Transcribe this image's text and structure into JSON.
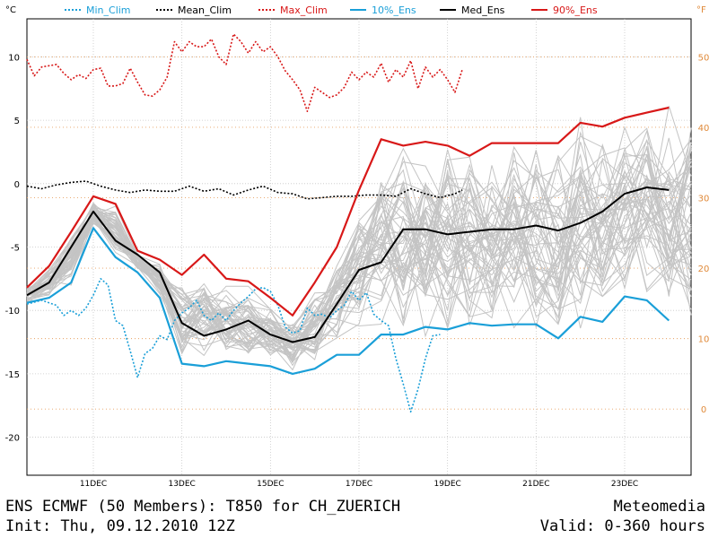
{
  "footer": {
    "title": "ENS ECMWF (50 Members): T850 for CH_ZUERICH",
    "init": "Init: Thu, 09.12.2010 12Z",
    "brand": "Meteomedia",
    "valid": "Valid: 0-360 hours"
  },
  "chart_data": {
    "type": "line",
    "left_unit": "°C",
    "right_unit": "°F",
    "ylim": [
      -23,
      13
    ],
    "xlim": [
      0,
      360
    ],
    "y_ticks": [
      -20,
      -15,
      -10,
      -5,
      0,
      5,
      10
    ],
    "y2_ticks": [
      0,
      10,
      20,
      30,
      40,
      50
    ],
    "x_ticks": [
      {
        "label": "11DEC",
        "h": 36
      },
      {
        "label": "13DEC",
        "h": 84
      },
      {
        "label": "15DEC",
        "h": 132
      },
      {
        "label": "17DEC",
        "h": 180
      },
      {
        "label": "19DEC",
        "h": 228
      },
      {
        "label": "21DEC",
        "h": 276
      },
      {
        "label": "23DEC",
        "h": 324
      }
    ],
    "legend": [
      {
        "key": "min_clim",
        "label": "Min_Clim",
        "color": "#1a9fd8",
        "dash": true
      },
      {
        "key": "mean_clim",
        "label": "Mean_Clim",
        "color": "#000000",
        "dash": true
      },
      {
        "key": "max_clim",
        "label": "Max_Clim",
        "color": "#d81818",
        "dash": true
      },
      {
        "key": "p10",
        "label": "10%_Ens",
        "color": "#1a9fd8",
        "dash": false
      },
      {
        "key": "med",
        "label": "Med_Ens",
        "color": "#000000",
        "dash": false
      },
      {
        "key": "p90",
        "label": "90%_Ens",
        "color": "#d81818",
        "dash": false
      }
    ],
    "series": [
      {
        "key": "max_clim",
        "values": [
          [
            0,
            9.8
          ],
          [
            4,
            8.5
          ],
          [
            8,
            9.2
          ],
          [
            12,
            9.3
          ],
          [
            16,
            9.4
          ],
          [
            20,
            8.7
          ],
          [
            24,
            8.2
          ],
          [
            28,
            8.6
          ],
          [
            32,
            8.3
          ],
          [
            36,
            9.0
          ],
          [
            40,
            9.1
          ],
          [
            44,
            7.7
          ],
          [
            48,
            7.7
          ],
          [
            52,
            7.9
          ],
          [
            56,
            9.1
          ],
          [
            60,
            8.0
          ],
          [
            64,
            7.0
          ],
          [
            68,
            6.9
          ],
          [
            72,
            7.4
          ],
          [
            76,
            8.4
          ],
          [
            80,
            11.2
          ],
          [
            84,
            10.4
          ],
          [
            88,
            11.2
          ],
          [
            92,
            10.8
          ],
          [
            96,
            10.8
          ],
          [
            100,
            11.4
          ],
          [
            104,
            10.0
          ],
          [
            108,
            9.4
          ],
          [
            112,
            11.8
          ],
          [
            116,
            11.2
          ],
          [
            120,
            10.3
          ],
          [
            124,
            11.2
          ],
          [
            128,
            10.4
          ],
          [
            132,
            10.8
          ],
          [
            136,
            10.0
          ],
          [
            140,
            8.9
          ],
          [
            144,
            8.2
          ],
          [
            148,
            7.4
          ],
          [
            152,
            5.7
          ],
          [
            156,
            7.6
          ],
          [
            160,
            7.2
          ],
          [
            164,
            6.8
          ],
          [
            168,
            7.0
          ],
          [
            172,
            7.6
          ],
          [
            176,
            8.8
          ],
          [
            180,
            8.2
          ],
          [
            184,
            8.8
          ],
          [
            188,
            8.4
          ],
          [
            192,
            9.5
          ],
          [
            196,
            8.0
          ],
          [
            200,
            9.0
          ],
          [
            204,
            8.4
          ],
          [
            208,
            9.7
          ],
          [
            212,
            7.5
          ],
          [
            216,
            9.2
          ],
          [
            220,
            8.4
          ],
          [
            224,
            9.0
          ],
          [
            228,
            8.2
          ],
          [
            232,
            7.2
          ],
          [
            236,
            9.0
          ]
        ]
      },
      {
        "key": "mean_clim",
        "values": [
          [
            0,
            -0.2
          ],
          [
            8,
            -0.4
          ],
          [
            16,
            -0.1
          ],
          [
            24,
            0.1
          ],
          [
            32,
            0.2
          ],
          [
            40,
            -0.2
          ],
          [
            48,
            -0.5
          ],
          [
            56,
            -0.7
          ],
          [
            64,
            -0.5
          ],
          [
            72,
            -0.6
          ],
          [
            80,
            -0.6
          ],
          [
            88,
            -0.2
          ],
          [
            96,
            -0.6
          ],
          [
            104,
            -0.4
          ],
          [
            112,
            -0.9
          ],
          [
            120,
            -0.5
          ],
          [
            128,
            -0.2
          ],
          [
            136,
            -0.7
          ],
          [
            144,
            -0.8
          ],
          [
            152,
            -1.2
          ],
          [
            160,
            -1.1
          ],
          [
            168,
            -1.0
          ],
          [
            176,
            -1.0
          ],
          [
            184,
            -0.9
          ],
          [
            192,
            -0.9
          ],
          [
            200,
            -1.0
          ],
          [
            208,
            -0.4
          ],
          [
            216,
            -0.8
          ],
          [
            224,
            -1.1
          ],
          [
            232,
            -0.8
          ],
          [
            236,
            -0.5
          ]
        ]
      },
      {
        "key": "min_clim",
        "values": [
          [
            0,
            -9.5
          ],
          [
            8,
            -9.2
          ],
          [
            12,
            -9.4
          ],
          [
            16,
            -9.6
          ],
          [
            20,
            -10.4
          ],
          [
            24,
            -10.0
          ],
          [
            28,
            -10.4
          ],
          [
            32,
            -9.8
          ],
          [
            36,
            -8.8
          ],
          [
            40,
            -7.5
          ],
          [
            44,
            -8.0
          ],
          [
            48,
            -10.8
          ],
          [
            52,
            -11.2
          ],
          [
            56,
            -13.2
          ],
          [
            60,
            -15.3
          ],
          [
            64,
            -13.4
          ],
          [
            68,
            -13.0
          ],
          [
            72,
            -12.0
          ],
          [
            76,
            -12.3
          ],
          [
            80,
            -10.8
          ],
          [
            84,
            -10.2
          ],
          [
            88,
            -9.8
          ],
          [
            92,
            -9.2
          ],
          [
            96,
            -10.4
          ],
          [
            100,
            -10.8
          ],
          [
            104,
            -10.2
          ],
          [
            108,
            -10.8
          ],
          [
            112,
            -10.0
          ],
          [
            116,
            -9.4
          ],
          [
            120,
            -8.9
          ],
          [
            124,
            -8.3
          ],
          [
            128,
            -8.2
          ],
          [
            132,
            -8.5
          ],
          [
            136,
            -9.6
          ],
          [
            140,
            -11.3
          ],
          [
            144,
            -11.8
          ],
          [
            148,
            -11.6
          ],
          [
            152,
            -9.8
          ],
          [
            156,
            -10.4
          ],
          [
            160,
            -10.3
          ],
          [
            164,
            -10.6
          ],
          [
            168,
            -10.0
          ],
          [
            172,
            -9.6
          ],
          [
            176,
            -8.5
          ],
          [
            180,
            -9.2
          ],
          [
            184,
            -8.6
          ],
          [
            188,
            -10.3
          ],
          [
            192,
            -10.8
          ],
          [
            196,
            -11.2
          ],
          [
            200,
            -13.8
          ],
          [
            204,
            -15.8
          ],
          [
            208,
            -18.0
          ],
          [
            212,
            -16.2
          ],
          [
            216,
            -13.8
          ],
          [
            220,
            -12.0
          ],
          [
            224,
            -11.9
          ]
        ]
      },
      {
        "key": "p90",
        "values": [
          [
            0,
            -8.2
          ],
          [
            12,
            -6.5
          ],
          [
            24,
            -3.8
          ],
          [
            36,
            -1.0
          ],
          [
            48,
            -1.6
          ],
          [
            60,
            -5.3
          ],
          [
            72,
            -6.0
          ],
          [
            84,
            -7.2
          ],
          [
            96,
            -5.6
          ],
          [
            108,
            -7.5
          ],
          [
            120,
            -7.7
          ],
          [
            132,
            -9.0
          ],
          [
            144,
            -10.4
          ],
          [
            156,
            -7.8
          ],
          [
            168,
            -5.0
          ],
          [
            180,
            -0.5
          ],
          [
            192,
            3.5
          ],
          [
            204,
            3.0
          ],
          [
            216,
            3.3
          ],
          [
            228,
            3.0
          ],
          [
            240,
            2.2
          ],
          [
            252,
            3.2
          ],
          [
            264,
            3.2
          ],
          [
            276,
            3.2
          ],
          [
            288,
            3.2
          ],
          [
            300,
            4.8
          ],
          [
            312,
            4.5
          ],
          [
            324,
            5.2
          ],
          [
            336,
            5.6
          ],
          [
            348,
            6.0
          ]
        ]
      },
      {
        "key": "med",
        "values": [
          [
            0,
            -8.8
          ],
          [
            12,
            -7.8
          ],
          [
            24,
            -5.0
          ],
          [
            36,
            -2.2
          ],
          [
            48,
            -4.5
          ],
          [
            60,
            -5.6
          ],
          [
            72,
            -7.0
          ],
          [
            84,
            -11.0
          ],
          [
            96,
            -12.0
          ],
          [
            108,
            -11.5
          ],
          [
            120,
            -10.8
          ],
          [
            132,
            -11.9
          ],
          [
            144,
            -12.5
          ],
          [
            156,
            -12.1
          ],
          [
            168,
            -9.5
          ],
          [
            180,
            -6.8
          ],
          [
            192,
            -6.2
          ],
          [
            204,
            -3.6
          ],
          [
            216,
            -3.6
          ],
          [
            228,
            -4.0
          ],
          [
            240,
            -3.8
          ],
          [
            252,
            -3.6
          ],
          [
            264,
            -3.6
          ],
          [
            276,
            -3.3
          ],
          [
            288,
            -3.7
          ],
          [
            300,
            -3.1
          ],
          [
            312,
            -2.2
          ],
          [
            324,
            -0.8
          ],
          [
            336,
            -0.3
          ],
          [
            348,
            -0.5
          ]
        ]
      },
      {
        "key": "p10",
        "values": [
          [
            0,
            -9.4
          ],
          [
            12,
            -9.0
          ],
          [
            24,
            -7.8
          ],
          [
            36,
            -3.5
          ],
          [
            48,
            -5.8
          ],
          [
            60,
            -7.0
          ],
          [
            72,
            -9.0
          ],
          [
            84,
            -14.2
          ],
          [
            96,
            -14.4
          ],
          [
            108,
            -14.0
          ],
          [
            120,
            -14.2
          ],
          [
            132,
            -14.4
          ],
          [
            144,
            -15.0
          ],
          [
            156,
            -14.6
          ],
          [
            168,
            -13.5
          ],
          [
            180,
            -13.5
          ],
          [
            192,
            -11.9
          ],
          [
            204,
            -11.9
          ],
          [
            216,
            -11.3
          ],
          [
            228,
            -11.5
          ],
          [
            240,
            -11.0
          ],
          [
            252,
            -11.2
          ],
          [
            264,
            -11.1
          ],
          [
            276,
            -11.1
          ],
          [
            288,
            -12.2
          ],
          [
            300,
            -10.5
          ],
          [
            312,
            -10.9
          ],
          [
            324,
            -8.9
          ],
          [
            336,
            -9.2
          ],
          [
            348,
            -10.8
          ]
        ]
      }
    ]
  }
}
